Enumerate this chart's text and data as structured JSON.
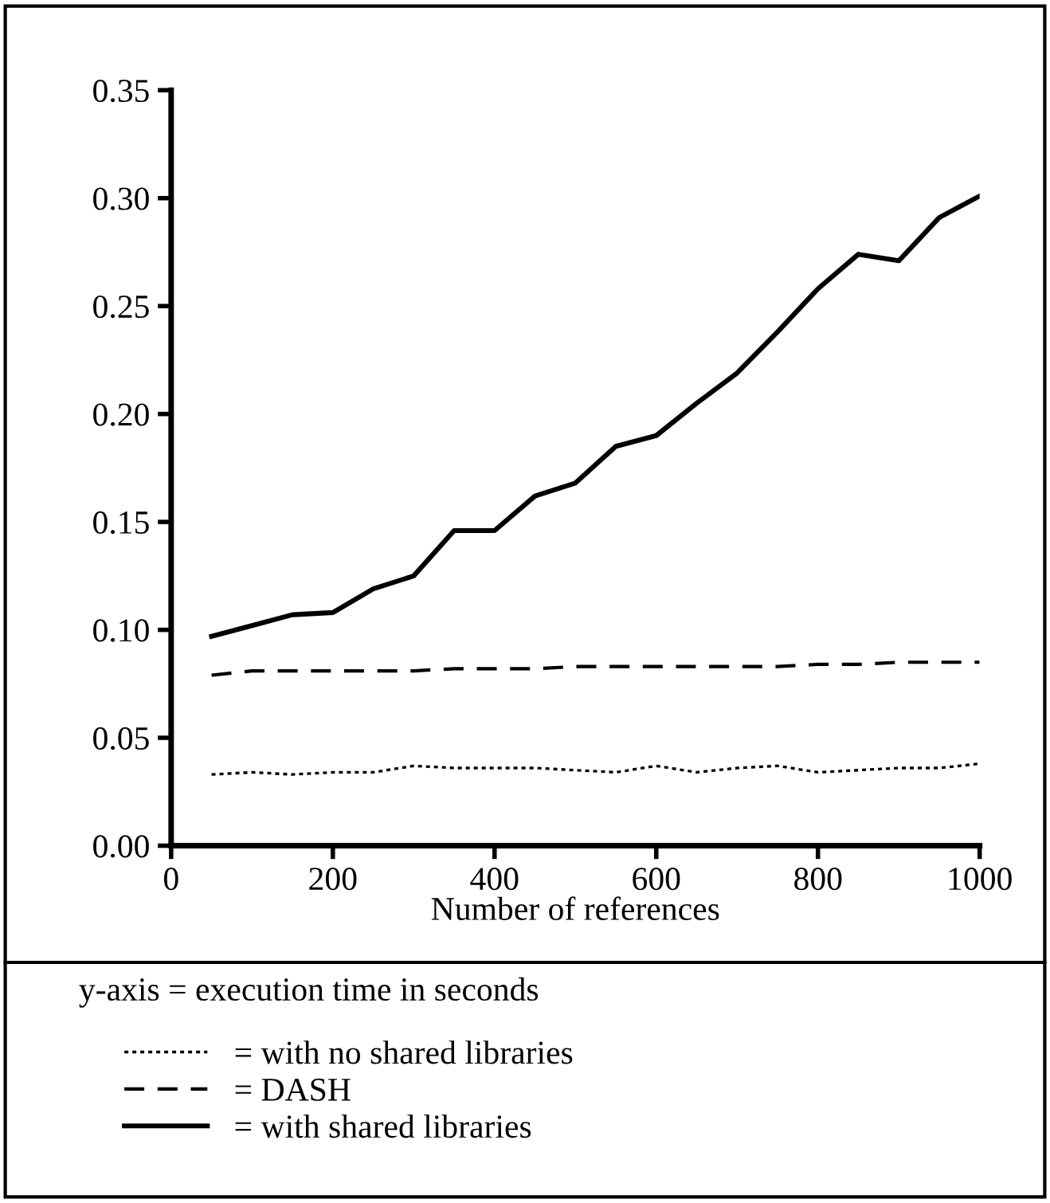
{
  "chart_data": {
    "type": "line",
    "xlabel": "Number of references",
    "annotations": [
      "y-axis = execution time in seconds"
    ],
    "x": [
      50,
      100,
      150,
      200,
      250,
      300,
      350,
      400,
      450,
      500,
      550,
      600,
      650,
      700,
      750,
      800,
      850,
      900,
      950,
      1000
    ],
    "series": [
      {
        "name": "= with no shared libraries",
        "color": "#000000",
        "line_style": "dotted",
        "values": [
          0.033,
          0.034,
          0.033,
          0.034,
          0.034,
          0.037,
          0.036,
          0.036,
          0.036,
          0.035,
          0.034,
          0.037,
          0.034,
          0.036,
          0.037,
          0.034,
          0.035,
          0.036,
          0.036,
          0.038
        ]
      },
      {
        "name": "= DASH",
        "color": "#000000",
        "line_style": "dashed",
        "values": [
          0.079,
          0.081,
          0.081,
          0.081,
          0.081,
          0.081,
          0.082,
          0.082,
          0.082,
          0.083,
          0.083,
          0.083,
          0.083,
          0.083,
          0.083,
          0.084,
          0.084,
          0.085,
          0.085,
          0.085
        ]
      },
      {
        "name": "= with shared libraries",
        "color": "#000000",
        "line_style": "solid",
        "values": [
          0.097,
          0.102,
          0.107,
          0.108,
          0.119,
          0.125,
          0.146,
          0.146,
          0.162,
          0.168,
          0.185,
          0.19,
          0.205,
          0.219,
          0.238,
          0.258,
          0.274,
          0.271,
          0.291,
          0.301
        ]
      }
    ],
    "xlim": [
      0,
      1000
    ],
    "xticks": [
      0,
      200,
      400,
      600,
      800,
      1000
    ],
    "ylim": [
      0,
      0.35
    ],
    "yticks": [
      {
        "value": 0,
        "label": "0.00"
      },
      {
        "value": 0.05,
        "label": "0.05"
      },
      {
        "value": 0.1,
        "label": "0.10"
      },
      {
        "value": 0.15,
        "label": "0.15"
      },
      {
        "value": 0.2,
        "label": "0.20"
      },
      {
        "value": 0.25,
        "label": "0.25"
      },
      {
        "value": 0.3,
        "label": "0.30"
      },
      {
        "value": 0.35,
        "label": "0.35"
      }
    ],
    "legend": "bottom",
    "grid": false
  }
}
